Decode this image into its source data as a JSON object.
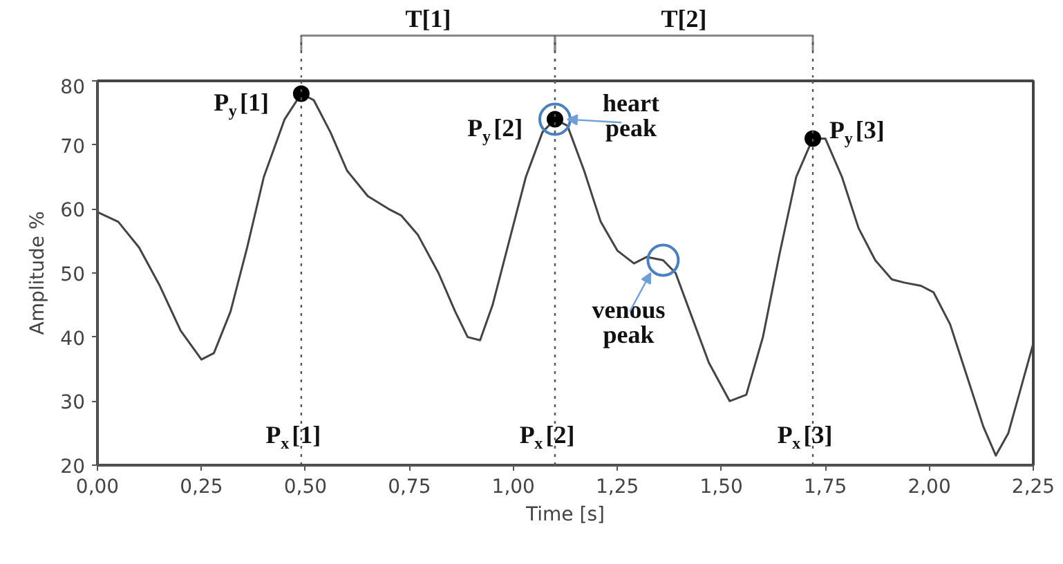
{
  "chart_data": {
    "type": "line",
    "xlabel": "Time [s]",
    "ylabel": "Amplitude %",
    "xlim": [
      0,
      2.25
    ],
    "ylim": [
      20,
      80
    ],
    "xticks": [
      {
        "value": 0,
        "label": "0,00"
      },
      {
        "value": 0.25,
        "label": "0,25"
      },
      {
        "value": 0.5,
        "label": "0,50"
      },
      {
        "value": 0.75,
        "label": "0,75"
      },
      {
        "value": 1.0,
        "label": "1,00"
      },
      {
        "value": 1.25,
        "label": "1,25"
      },
      {
        "value": 1.5,
        "label": "1,50"
      },
      {
        "value": 1.75,
        "label": "1,75"
      },
      {
        "value": 2.0,
        "label": "2,00"
      },
      {
        "value": 2.25,
        "label": "2,25"
      }
    ],
    "yticks": [
      20,
      30,
      40,
      50,
      60,
      70,
      80
    ],
    "grid": false,
    "line_style": "solid",
    "series": [
      {
        "color": "#444444",
        "marker": "none",
        "x": [
          0,
          0.05,
          0.1,
          0.15,
          0.2,
          0.25,
          0.28,
          0.32,
          0.36,
          0.4,
          0.45,
          0.49,
          0.52,
          0.56,
          0.6,
          0.65,
          0.7,
          0.73,
          0.77,
          0.82,
          0.86,
          0.89,
          0.92,
          0.95,
          0.99,
          1.03,
          1.07,
          1.1,
          1.13,
          1.17,
          1.21,
          1.25,
          1.29,
          1.32,
          1.36,
          1.39,
          1.43,
          1.47,
          1.52,
          1.56,
          1.6,
          1.64,
          1.68,
          1.72,
          1.75,
          1.79,
          1.83,
          1.87,
          1.91,
          1.94,
          1.98,
          2.01,
          2.05,
          2.09,
          2.13,
          2.16,
          2.19,
          2.22,
          2.25
        ],
        "values": [
          59.5,
          58,
          54,
          48,
          41,
          36.5,
          37.5,
          44,
          54,
          65,
          74,
          78,
          77,
          72,
          66,
          62,
          60,
          59,
          56,
          50,
          44,
          40,
          39.5,
          45,
          55,
          65,
          72,
          74,
          73,
          66,
          58,
          53.5,
          51.5,
          52.5,
          52,
          50,
          43,
          36,
          30,
          31,
          40,
          53,
          65,
          71,
          71,
          65,
          57,
          52,
          49,
          48.5,
          48,
          47,
          42,
          34,
          26,
          21.5,
          25,
          32,
          39
        ]
      },
      {
        "type": "scatter",
        "color": "#000000",
        "marker": "circle",
        "x": [
          0.49,
          1.1,
          1.72
        ],
        "values": [
          78,
          74,
          71
        ]
      }
    ],
    "ref_lines": [
      {
        "axis": "x",
        "value": 0.49,
        "label": "P$_{x}$[1]",
        "color": "#555555",
        "line_style": "dotted"
      },
      {
        "axis": "x",
        "value": 1.1,
        "label": "P$_{x}$[2]",
        "color": "#555555",
        "line_style": "dotted"
      },
      {
        "axis": "x",
        "value": 1.72,
        "label": "P$_{x}$[3]",
        "color": "#555555",
        "line_style": "dotted"
      }
    ],
    "annotations": [
      "T[1]",
      "T[2]",
      {
        "text": "P$_{y}$[1]",
        "x": 0.49,
        "y": 78
      },
      {
        "text": "P$_{y}$[2]",
        "x": 1.1,
        "y": 74
      },
      {
        "text": "P$_{y}$[3]",
        "x": 1.72,
        "y": 71
      },
      {
        "text": "heart\npeak",
        "x": 1.1,
        "y": 74
      },
      {
        "text": "venous\npeak",
        "x": 1.36,
        "y": 52
      }
    ]
  }
}
